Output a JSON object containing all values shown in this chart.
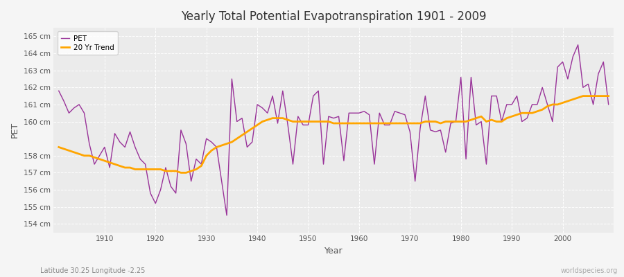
{
  "title": "Yearly Total Potential Evapotranspiration 1901 - 2009",
  "xlabel": "Year",
  "ylabel": "PET",
  "subtitle": "Latitude 30.25 Longitude -2.25",
  "watermark": "worldspecies.org",
  "pet_color": "#993399",
  "trend_color": "#FFA500",
  "bg_color": "#f5f5f5",
  "plot_bg_color": "#ebebeb",
  "grid_color": "#cccccc",
  "ylim": [
    153.5,
    165.5
  ],
  "yticks": [
    154,
    155,
    156,
    157,
    158,
    160,
    161,
    162,
    163,
    164,
    165
  ],
  "xlim_left": 1900,
  "xlim_right": 2010,
  "xticks": [
    1910,
    1920,
    1930,
    1940,
    1950,
    1960,
    1970,
    1980,
    1990,
    2000
  ],
  "years": [
    1901,
    1902,
    1903,
    1904,
    1905,
    1906,
    1907,
    1908,
    1909,
    1910,
    1911,
    1912,
    1913,
    1914,
    1915,
    1916,
    1917,
    1918,
    1919,
    1920,
    1921,
    1922,
    1923,
    1924,
    1925,
    1926,
    1927,
    1928,
    1929,
    1930,
    1931,
    1932,
    1933,
    1934,
    1935,
    1936,
    1937,
    1938,
    1939,
    1940,
    1941,
    1942,
    1943,
    1944,
    1945,
    1946,
    1947,
    1948,
    1949,
    1950,
    1951,
    1952,
    1953,
    1954,
    1955,
    1956,
    1957,
    1958,
    1959,
    1960,
    1961,
    1962,
    1963,
    1964,
    1965,
    1966,
    1967,
    1968,
    1969,
    1970,
    1971,
    1972,
    1973,
    1974,
    1975,
    1976,
    1977,
    1978,
    1979,
    1980,
    1981,
    1982,
    1983,
    1984,
    1985,
    1986,
    1987,
    1988,
    1989,
    1990,
    1991,
    1992,
    1993,
    1994,
    1995,
    1996,
    1997,
    1998,
    1999,
    2000,
    2001,
    2002,
    2003,
    2004,
    2005,
    2006,
    2007,
    2008,
    2009
  ],
  "pet_values": [
    161.8,
    161.2,
    160.5,
    160.8,
    161.0,
    160.5,
    158.7,
    157.5,
    158.0,
    158.5,
    157.3,
    159.3,
    158.8,
    158.5,
    159.4,
    158.5,
    157.8,
    157.5,
    155.8,
    155.2,
    156.0,
    157.3,
    156.2,
    155.8,
    159.5,
    158.7,
    156.5,
    157.8,
    157.5,
    159.0,
    158.8,
    158.5,
    156.5,
    154.5,
    162.5,
    160.0,
    160.2,
    158.5,
    158.8,
    161.0,
    160.8,
    160.5,
    161.5,
    159.9,
    161.8,
    159.8,
    157.5,
    160.3,
    159.8,
    159.8,
    161.5,
    161.8,
    157.5,
    160.3,
    160.2,
    160.3,
    157.7,
    160.5,
    160.5,
    160.5,
    160.6,
    160.4,
    157.5,
    160.5,
    159.8,
    159.8,
    160.6,
    160.5,
    160.4,
    159.4,
    156.5,
    159.6,
    161.5,
    159.5,
    159.4,
    159.5,
    158.2,
    159.9,
    160.0,
    162.6,
    157.8,
    162.6,
    159.8,
    160.0,
    157.5,
    161.5,
    161.5,
    160.0,
    161.0,
    161.0,
    161.5,
    160.0,
    160.2,
    161.0,
    161.0,
    162.0,
    161.0,
    160.0,
    163.2,
    163.5,
    162.5,
    163.8,
    164.5,
    162.0,
    162.2,
    161.0,
    162.8,
    163.5,
    161.0
  ],
  "trend_values": [
    158.5,
    158.4,
    158.3,
    158.2,
    158.1,
    158.0,
    158.0,
    157.9,
    157.8,
    157.7,
    157.6,
    157.5,
    157.4,
    157.3,
    157.3,
    157.2,
    157.2,
    157.2,
    157.2,
    157.2,
    157.2,
    157.1,
    157.1,
    157.1,
    157.0,
    157.0,
    157.1,
    157.2,
    157.4,
    158.0,
    158.3,
    158.5,
    158.6,
    158.7,
    158.8,
    159.0,
    159.2,
    159.4,
    159.6,
    159.8,
    160.0,
    160.1,
    160.2,
    160.2,
    160.2,
    160.1,
    160.0,
    160.0,
    160.0,
    160.0,
    160.0,
    160.0,
    160.0,
    160.0,
    159.9,
    159.9,
    159.9,
    159.9,
    159.9,
    159.9,
    159.9,
    159.9,
    159.9,
    159.9,
    159.9,
    159.9,
    159.9,
    159.9,
    159.9,
    159.9,
    159.9,
    159.9,
    160.0,
    160.0,
    160.0,
    159.9,
    160.0,
    160.0,
    160.0,
    160.0,
    160.0,
    160.1,
    160.2,
    160.3,
    160.0,
    160.1,
    160.0,
    160.0,
    160.2,
    160.3,
    160.4,
    160.5,
    160.5,
    160.5,
    160.6,
    160.7,
    160.9,
    161.0,
    161.0,
    161.1,
    161.2,
    161.3,
    161.4,
    161.5,
    161.5,
    161.5,
    161.5,
    161.5,
    161.5
  ]
}
